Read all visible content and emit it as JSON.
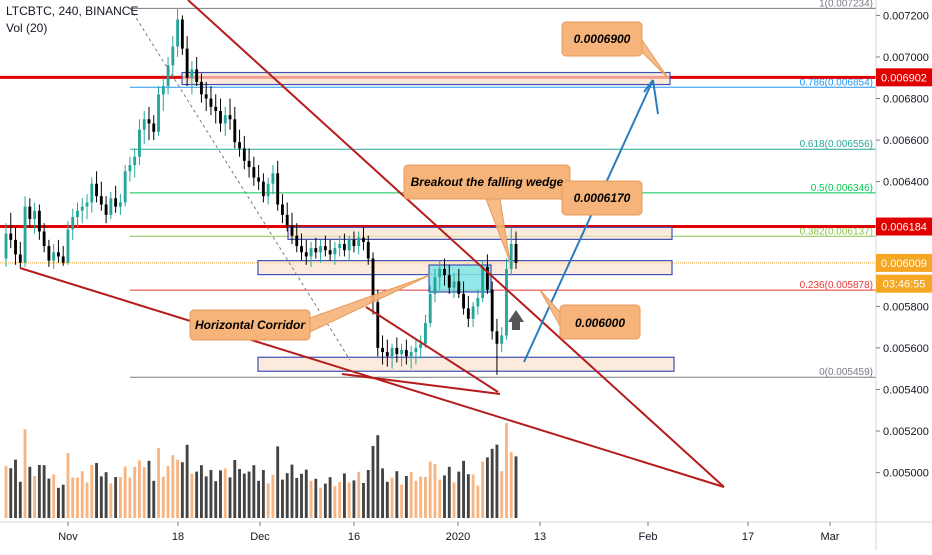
{
  "header": {
    "symbol": "LTCBTC, 240, BINANCE",
    "volume": "Vol (20)"
  },
  "colors": {
    "up": "#26a69a",
    "down": "#000000",
    "vol_up": "#f5a86c",
    "vol_down": "#222222",
    "red_line": "#e00000",
    "trend": "#b71c1c",
    "arrow": "#2b7bbf",
    "callout_fill": "#f6b47a",
    "callout_stroke": "#e59a5a",
    "zone_fill": "#fbe3cf",
    "zone_stroke": "#3f51b5",
    "cyan_box": "#7fe5e5"
  },
  "chart_data": {
    "type": "candlestick",
    "y_axis": {
      "range": [
        0.00482,
        0.00725
      ],
      "ticks": [
        "0.007200",
        "0.007000",
        "0.006800",
        "0.006600",
        "0.006400",
        "0.005800",
        "0.005600",
        "0.005400",
        "0.005200",
        "0.005000"
      ]
    },
    "x_axis": {
      "labels": [
        "Nov",
        "18",
        "Dec",
        "16",
        "2020",
        "13",
        "Feb",
        "17",
        "Mar"
      ]
    },
    "price_tags": [
      {
        "label": "0.006902",
        "value": 0.006902,
        "color": "#e00000"
      },
      {
        "label": "0.006184",
        "value": 0.006184,
        "color": "#e00000"
      },
      {
        "label": "0.006009",
        "value": 0.006009,
        "color": "#f5a623"
      },
      {
        "label": "03:46:55",
        "value": 0.005909,
        "color": "#f5a623"
      }
    ],
    "fib_levels": [
      {
        "label": "1(0.007234)",
        "value": 0.007234,
        "color": "#787b86"
      },
      {
        "label": "0.786(0.006854)",
        "value": 0.006854,
        "color": "#2196f3"
      },
      {
        "label": "0.618(0.006556)",
        "value": 0.006556,
        "color": "#26a69a"
      },
      {
        "label": "0.5(0.006346)",
        "value": 0.006346,
        "color": "#00c853"
      },
      {
        "label": "0.382(0.006137)",
        "value": 0.006137,
        "color": "#8bc34a"
      },
      {
        "label": "0.236(0.005878)",
        "value": 0.005878,
        "color": "#e53935"
      },
      {
        "label": "0(0.005459)",
        "value": 0.005459,
        "color": "#787b86"
      }
    ],
    "horizontal_lines": [
      0.006902,
      0.006184
    ],
    "callouts": [
      {
        "text": "0.0006900"
      },
      {
        "text": "Breakout the falling wedge"
      },
      {
        "text": "0.0006170"
      },
      {
        "text": "Horizontal Corridor"
      },
      {
        "text": "0.006000"
      }
    ],
    "candles": [
      [
        6030,
        6200,
        5990,
        6150
      ],
      [
        6150,
        6250,
        6080,
        6120
      ],
      [
        6120,
        6180,
        6000,
        6050
      ],
      [
        6050,
        6110,
        5980,
        6010
      ],
      [
        6010,
        6330,
        5990,
        6280
      ],
      [
        6280,
        6320,
        6180,
        6220
      ],
      [
        6220,
        6300,
        6150,
        6260
      ],
      [
        6260,
        6290,
        6120,
        6160
      ],
      [
        6160,
        6200,
        6060,
        6090
      ],
      [
        6090,
        6120,
        5990,
        6020
      ],
      [
        6020,
        6100,
        5980,
        6060
      ],
      [
        6060,
        6120,
        6010,
        6040
      ],
      [
        6040,
        6090,
        5995,
        6010
      ],
      [
        6010,
        6210,
        6000,
        6170
      ],
      [
        6170,
        6270,
        6120,
        6230
      ],
      [
        6230,
        6300,
        6180,
        6260
      ],
      [
        6260,
        6320,
        6200,
        6280
      ],
      [
        6280,
        6340,
        6220,
        6300
      ],
      [
        6300,
        6420,
        6250,
        6390
      ],
      [
        6390,
        6450,
        6300,
        6330
      ],
      [
        6330,
        6400,
        6260,
        6290
      ],
      [
        6290,
        6330,
        6200,
        6240
      ],
      [
        6240,
        6350,
        6220,
        6320
      ],
      [
        6320,
        6380,
        6250,
        6280
      ],
      [
        6280,
        6340,
        6240,
        6300
      ],
      [
        6300,
        6480,
        6280,
        6450
      ],
      [
        6450,
        6520,
        6400,
        6480
      ],
      [
        6480,
        6560,
        6420,
        6520
      ],
      [
        6520,
        6700,
        6480,
        6650
      ],
      [
        6650,
        6740,
        6580,
        6700
      ],
      [
        6700,
        6760,
        6600,
        6680
      ],
      [
        6680,
        6720,
        6600,
        6640
      ],
      [
        6640,
        6860,
        6620,
        6820
      ],
      [
        6820,
        6900,
        6740,
        6860
      ],
      [
        6860,
        7000,
        6820,
        6960
      ],
      [
        6960,
        7100,
        6900,
        7050
      ],
      [
        7050,
        7230,
        7000,
        7180
      ],
      [
        7180,
        7200,
        7010,
        7040
      ],
      [
        7040,
        7100,
        6860,
        6900
      ],
      [
        6900,
        6980,
        6820,
        6940
      ],
      [
        6940,
        7000,
        6860,
        6880
      ],
      [
        6880,
        6920,
        6780,
        6820
      ],
      [
        6820,
        6880,
        6740,
        6800
      ],
      [
        6800,
        6860,
        6720,
        6760
      ],
      [
        6760,
        6820,
        6680,
        6740
      ],
      [
        6740,
        6800,
        6640,
        6680
      ],
      [
        6680,
        6760,
        6620,
        6720
      ],
      [
        6720,
        6800,
        6650,
        6700
      ],
      [
        6700,
        6760,
        6560,
        6590
      ],
      [
        6590,
        6650,
        6520,
        6560
      ],
      [
        6560,
        6620,
        6460,
        6500
      ],
      [
        6500,
        6560,
        6420,
        6470
      ],
      [
        6470,
        6520,
        6380,
        6420
      ],
      [
        6420,
        6480,
        6360,
        6400
      ],
      [
        6400,
        6440,
        6300,
        6330
      ],
      [
        6330,
        6420,
        6290,
        6390
      ],
      [
        6390,
        6480,
        6340,
        6440
      ],
      [
        6440,
        6500,
        6260,
        6290
      ],
      [
        6290,
        6340,
        6200,
        6240
      ],
      [
        6240,
        6300,
        6160,
        6190
      ],
      [
        6190,
        6250,
        6100,
        6140
      ],
      [
        6140,
        6200,
        6060,
        6090
      ],
      [
        6090,
        6150,
        6020,
        6060
      ],
      [
        6060,
        6120,
        6000,
        6040
      ],
      [
        6040,
        6110,
        5990,
        6080
      ],
      [
        6080,
        6130,
        6030,
        6060
      ],
      [
        6060,
        6120,
        6010,
        6090
      ],
      [
        6090,
        6140,
        6040,
        6070
      ],
      [
        6070,
        6120,
        6020,
        6050
      ],
      [
        6050,
        6110,
        6000,
        6080
      ],
      [
        6080,
        6140,
        6040,
        6100
      ],
      [
        6100,
        6150,
        6040,
        6070
      ],
      [
        6070,
        6140,
        6020,
        6120
      ],
      [
        6120,
        6160,
        6060,
        6090
      ],
      [
        6090,
        6160,
        6050,
        6130
      ],
      [
        6130,
        6180,
        6070,
        6110
      ],
      [
        6110,
        6140,
        6000,
        6030
      ],
      [
        6030,
        6060,
        5760,
        5820
      ],
      [
        5820,
        5880,
        5560,
        5600
      ],
      [
        5600,
        5660,
        5520,
        5580
      ],
      [
        5580,
        5640,
        5510,
        5560
      ],
      [
        5560,
        5620,
        5500,
        5600
      ],
      [
        5600,
        5650,
        5530,
        5570
      ],
      [
        5570,
        5620,
        5510,
        5590
      ],
      [
        5590,
        5640,
        5520,
        5560
      ],
      [
        5560,
        5610,
        5500,
        5580
      ],
      [
        5580,
        5640,
        5520,
        5600
      ],
      [
        5600,
        5660,
        5550,
        5620
      ],
      [
        5620,
        5760,
        5600,
        5720
      ],
      [
        5720,
        5900,
        5700,
        5860
      ],
      [
        5860,
        5980,
        5820,
        5940
      ],
      [
        5940,
        6020,
        5880,
        5980
      ],
      [
        5980,
        6030,
        5900,
        5950
      ],
      [
        5950,
        6000,
        5860,
        5890
      ],
      [
        5890,
        5960,
        5840,
        5920
      ],
      [
        5920,
        5980,
        5840,
        5860
      ],
      [
        5860,
        5920,
        5760,
        5790
      ],
      [
        5790,
        5850,
        5700,
        5740
      ],
      [
        5740,
        5820,
        5700,
        5800
      ],
      [
        5800,
        5880,
        5760,
        5840
      ],
      [
        5840,
        6020,
        5820,
        5990
      ],
      [
        5990,
        6050,
        5860,
        5880
      ],
      [
        5880,
        5920,
        5640,
        5680
      ],
      [
        5680,
        5740,
        5470,
        5620
      ],
      [
        5620,
        5700,
        5580,
        5660
      ],
      [
        5660,
        6030,
        5640,
        5980
      ],
      [
        5980,
        6180,
        5950,
        6100
      ],
      [
        6100,
        6160,
        5980,
        6009
      ]
    ]
  }
}
